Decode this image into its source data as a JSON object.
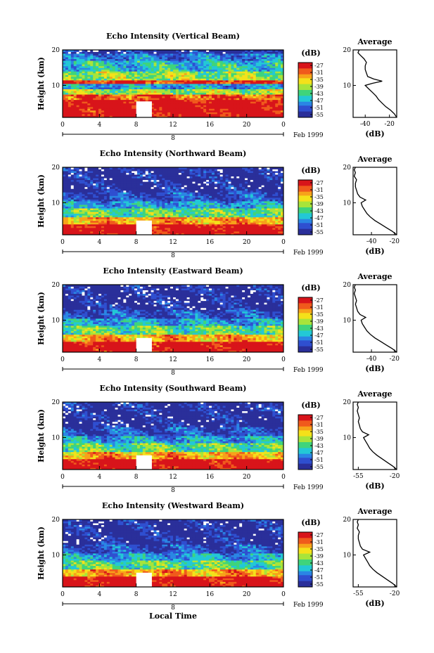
{
  "figure": {
    "xaxis_label": "Local Time",
    "date_label": "Feb 1999",
    "date_day": "8",
    "colorbar_unit": "(dB)",
    "colorbar_ticks": [
      "-27",
      "-31",
      "-35",
      "-39",
      "-43",
      "-47",
      "-51",
      "-55"
    ],
    "colormap": [
      "#d8141a",
      "#f05a1c",
      "#f7a21a",
      "#f4e11a",
      "#a8e43a",
      "#3fd47b",
      "#23c8d6",
      "#2a86e4",
      "#2f4fd0",
      "#2a2f9a"
    ]
  },
  "chart_data": [
    {
      "type": "heatmap",
      "title": "Echo Intensity (Vertical Beam)",
      "ylabel": "Height (km)",
      "xlabel": "",
      "x_ticks": [
        "0",
        "4",
        "8",
        "12",
        "16",
        "20",
        "0"
      ],
      "y_ticks": [
        "20",
        "10"
      ],
      "xlim": [
        0,
        24
      ],
      "ylim": [
        1,
        20
      ],
      "data_gap": {
        "x": [
          8,
          9.7
        ],
        "y": [
          1,
          5.5
        ]
      },
      "bands": [
        {
          "y0": 1,
          "y1": 6,
          "db": -27
        },
        {
          "y0": 6,
          "y1": 7.5,
          "db": -31
        },
        {
          "y0": 7.5,
          "y1": 9,
          "db": -40
        },
        {
          "y0": 9,
          "y1": 10.5,
          "db": -47
        },
        {
          "y0": 10.5,
          "y1": 11.5,
          "db": -30
        },
        {
          "y0": 11.5,
          "y1": 14,
          "db": -40
        },
        {
          "y0": 14,
          "y1": 17,
          "db": -45
        },
        {
          "y0": 17,
          "y1": 19,
          "db": -49
        },
        {
          "y0": 19,
          "y1": 20,
          "db": -53
        }
      ],
      "profile": {
        "title": "Average",
        "xlabel": "(dB)",
        "x_ticks": [
          "-40",
          "-20"
        ],
        "y_ticks": [
          "20",
          "10"
        ],
        "xlim": [
          -50,
          -14
        ],
        "ylim": [
          1,
          20
        ],
        "points": [
          [
            -14,
            1
          ],
          [
            -16,
            2
          ],
          [
            -19,
            3
          ],
          [
            -23,
            4
          ],
          [
            -26,
            5
          ],
          [
            -29,
            6
          ],
          [
            -31,
            7
          ],
          [
            -34,
            8
          ],
          [
            -37,
            9
          ],
          [
            -40,
            10
          ],
          [
            -34,
            10.6
          ],
          [
            -26,
            11.2
          ],
          [
            -33,
            11.8
          ],
          [
            -38,
            12.5
          ],
          [
            -39,
            13.5
          ],
          [
            -40,
            14.5
          ],
          [
            -40,
            15.5
          ],
          [
            -39,
            16.5
          ],
          [
            -41,
            17.5
          ],
          [
            -44,
            18.5
          ],
          [
            -46,
            19.2
          ],
          [
            -45,
            20
          ]
        ]
      }
    },
    {
      "type": "heatmap",
      "title": "Echo Intensity (Northward Beam)",
      "ylabel": "Height (km)",
      "xlabel": "",
      "x_ticks": [
        "0",
        "4",
        "8",
        "12",
        "16",
        "20",
        "0"
      ],
      "y_ticks": [
        "20",
        "10"
      ],
      "xlim": [
        0,
        24
      ],
      "ylim": [
        1,
        20
      ],
      "data_gap": {
        "x": [
          8,
          9.7
        ],
        "y": [
          1,
          5
        ]
      },
      "bands": [
        {
          "y0": 1,
          "y1": 4,
          "db": -27
        },
        {
          "y0": 4,
          "y1": 6,
          "db": -34
        },
        {
          "y0": 6,
          "y1": 8.5,
          "db": -42
        },
        {
          "y0": 8.5,
          "y1": 10.5,
          "db": -47
        },
        {
          "y0": 10.5,
          "y1": 13,
          "db": -51
        },
        {
          "y0": 13,
          "y1": 20,
          "db": -54
        }
      ],
      "profile": {
        "title": "Average",
        "xlabel": "(dB)",
        "x_ticks": [
          "-40",
          "-20"
        ],
        "y_ticks": [
          "20",
          "10"
        ],
        "xlim": [
          -56,
          -18
        ],
        "ylim": [
          1,
          20
        ],
        "points": [
          [
            -18,
            1
          ],
          [
            -22,
            2
          ],
          [
            -27,
            3
          ],
          [
            -32,
            4
          ],
          [
            -37,
            5
          ],
          [
            -41,
            6
          ],
          [
            -44,
            7
          ],
          [
            -46,
            8
          ],
          [
            -48,
            9
          ],
          [
            -49,
            10
          ],
          [
            -45,
            10.8
          ],
          [
            -50,
            11.6
          ],
          [
            -52,
            12.5
          ],
          [
            -53,
            13.5
          ],
          [
            -54,
            14.5
          ],
          [
            -54,
            15.5
          ],
          [
            -53,
            16.5
          ],
          [
            -55,
            17.5
          ],
          [
            -54,
            18.5
          ],
          [
            -55,
            19.3
          ],
          [
            -54,
            20
          ]
        ]
      }
    },
    {
      "type": "heatmap",
      "title": "Echo Intensity (Eastward Beam)",
      "ylabel": "Height (km)",
      "xlabel": "",
      "x_ticks": [
        "0",
        "4",
        "8",
        "12",
        "16",
        "20",
        "0"
      ],
      "y_ticks": [
        "20",
        "10"
      ],
      "xlim": [
        0,
        24
      ],
      "ylim": [
        1,
        20
      ],
      "data_gap": {
        "x": [
          8,
          9.7
        ],
        "y": [
          1,
          5
        ]
      },
      "bands": [
        {
          "y0": 1,
          "y1": 4,
          "db": -27
        },
        {
          "y0": 4,
          "y1": 6,
          "db": -34
        },
        {
          "y0": 6,
          "y1": 8.5,
          "db": -42
        },
        {
          "y0": 8.5,
          "y1": 10.5,
          "db": -47
        },
        {
          "y0": 10.5,
          "y1": 13,
          "db": -51
        },
        {
          "y0": 13,
          "y1": 20,
          "db": -54
        }
      ],
      "profile": {
        "title": "Average",
        "xlabel": "(dB)",
        "x_ticks": [
          "-40",
          "-20"
        ],
        "y_ticks": [
          "20",
          "10"
        ],
        "xlim": [
          -56,
          -18
        ],
        "ylim": [
          1,
          20
        ],
        "points": [
          [
            -18,
            1
          ],
          [
            -22,
            2
          ],
          [
            -27,
            3
          ],
          [
            -32,
            4
          ],
          [
            -37,
            5
          ],
          [
            -41,
            6
          ],
          [
            -44,
            7
          ],
          [
            -46,
            8
          ],
          [
            -48,
            9
          ],
          [
            -49,
            10
          ],
          [
            -45,
            10.8
          ],
          [
            -50,
            11.6
          ],
          [
            -52,
            12.5
          ],
          [
            -53,
            13.5
          ],
          [
            -54,
            14.5
          ],
          [
            -53,
            15.5
          ],
          [
            -54,
            16.5
          ],
          [
            -55,
            17.5
          ],
          [
            -54,
            18.5
          ],
          [
            -55,
            19.3
          ],
          [
            -54,
            20
          ]
        ]
      }
    },
    {
      "type": "heatmap",
      "title": "Echo Intensity (Southward Beam)",
      "ylabel": "Height (km)",
      "xlabel": "",
      "x_ticks": [
        "0",
        "4",
        "8",
        "12",
        "16",
        "20",
        "0"
      ],
      "y_ticks": [
        "20",
        "10"
      ],
      "xlim": [
        0,
        24
      ],
      "ylim": [
        1,
        20
      ],
      "data_gap": {
        "x": [
          8,
          9.7
        ],
        "y": [
          1,
          5
        ]
      },
      "bands": [
        {
          "y0": 1,
          "y1": 4,
          "db": -27
        },
        {
          "y0": 4,
          "y1": 6,
          "db": -34
        },
        {
          "y0": 6,
          "y1": 8.5,
          "db": -42
        },
        {
          "y0": 8.5,
          "y1": 10.5,
          "db": -47
        },
        {
          "y0": 10.5,
          "y1": 13,
          "db": -51
        },
        {
          "y0": 13,
          "y1": 20,
          "db": -54
        }
      ],
      "profile": {
        "title": "Average",
        "xlabel": "(dB)",
        "x_ticks": [
          "-55",
          "-20"
        ],
        "y_ticks": [
          "20",
          "10"
        ],
        "xlim": [
          -60,
          -18
        ],
        "ylim": [
          1,
          20
        ],
        "points": [
          [
            -18,
            1
          ],
          [
            -22,
            2
          ],
          [
            -27,
            3
          ],
          [
            -32,
            4
          ],
          [
            -37,
            5
          ],
          [
            -41,
            6
          ],
          [
            -44,
            7
          ],
          [
            -46,
            8
          ],
          [
            -48,
            9
          ],
          [
            -50,
            10
          ],
          [
            -45,
            10.8
          ],
          [
            -51,
            11.6
          ],
          [
            -53,
            12.5
          ],
          [
            -54,
            13.5
          ],
          [
            -55,
            14.5
          ],
          [
            -54,
            15.5
          ],
          [
            -55,
            16.5
          ],
          [
            -56,
            17.5
          ],
          [
            -55,
            18.5
          ],
          [
            -56,
            19.3
          ],
          [
            -55,
            20
          ]
        ]
      }
    },
    {
      "type": "heatmap",
      "title": "Echo Intensity (Westward Beam)",
      "ylabel": "Height (km)",
      "xlabel": "Local Time",
      "x_ticks": [
        "0",
        "4",
        "8",
        "12",
        "16",
        "20",
        "0"
      ],
      "y_ticks": [
        "20",
        "10"
      ],
      "xlim": [
        0,
        24
      ],
      "ylim": [
        1,
        20
      ],
      "data_gap": {
        "x": [
          8,
          9.7
        ],
        "y": [
          1,
          5
        ]
      },
      "bands": [
        {
          "y0": 1,
          "y1": 4,
          "db": -27
        },
        {
          "y0": 4,
          "y1": 6,
          "db": -34
        },
        {
          "y0": 6,
          "y1": 8.5,
          "db": -42
        },
        {
          "y0": 8.5,
          "y1": 10.5,
          "db": -47
        },
        {
          "y0": 10.5,
          "y1": 13,
          "db": -51
        },
        {
          "y0": 13,
          "y1": 20,
          "db": -54
        }
      ],
      "profile": {
        "title": "Average",
        "xlabel": "(dB)",
        "x_ticks": [
          "-55",
          "-20"
        ],
        "y_ticks": [
          "20",
          "10"
        ],
        "xlim": [
          -60,
          -18
        ],
        "ylim": [
          1,
          20
        ],
        "points": [
          [
            -18,
            1
          ],
          [
            -22,
            2
          ],
          [
            -27,
            3
          ],
          [
            -32,
            4
          ],
          [
            -37,
            5
          ],
          [
            -41,
            6
          ],
          [
            -44,
            7
          ],
          [
            -46,
            8
          ],
          [
            -48,
            9
          ],
          [
            -50,
            10
          ],
          [
            -44,
            10.8
          ],
          [
            -51,
            11.6
          ],
          [
            -53,
            12.5
          ],
          [
            -54,
            13.5
          ],
          [
            -55,
            14.5
          ],
          [
            -55,
            15.5
          ],
          [
            -54,
            16.5
          ],
          [
            -56,
            17.5
          ],
          [
            -55,
            18.5
          ],
          [
            -56,
            19.3
          ],
          [
            -55,
            20
          ]
        ]
      }
    }
  ]
}
